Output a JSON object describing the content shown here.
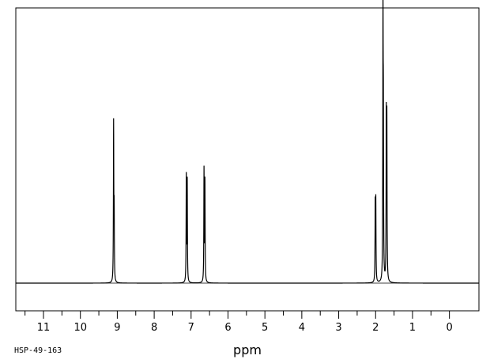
{
  "chart_data": {
    "type": "line",
    "title": "",
    "xlabel": "ppm",
    "ylabel": "",
    "x_reversed": true,
    "xlim": [
      11.75,
      -0.8
    ],
    "ylim": [
      0,
      100
    ],
    "grid": false,
    "x_major_ticks": [
      11,
      10,
      9,
      8,
      7,
      6,
      5,
      4,
      3,
      2,
      1,
      0
    ],
    "x_tick_labels": [
      "11",
      "10",
      "9",
      "8",
      "7",
      "6",
      "5",
      "4",
      "3",
      "2",
      "1",
      "0"
    ],
    "x_minor_ticks": [
      11.5,
      10.5,
      9.5,
      8.5,
      7.5,
      6.5,
      5.5,
      4.5,
      3.5,
      2.5,
      1.5,
      0.5
    ],
    "peaks": [
      {
        "ppm": 9.1,
        "intensity": 61.9
      },
      {
        "ppm": 9.085,
        "intensity": 26.3
      },
      {
        "ppm": 7.13,
        "intensity": 42.0
      },
      {
        "ppm": 7.105,
        "intensity": 40.0
      },
      {
        "ppm": 6.65,
        "intensity": 44.5
      },
      {
        "ppm": 6.625,
        "intensity": 39.9
      },
      {
        "ppm": 2.01,
        "intensity": 30.0
      },
      {
        "ppm": 1.995,
        "intensity": 31.0
      },
      {
        "ppm": 1.8,
        "intensity": 100.0
      },
      {
        "ppm": 1.79,
        "intensity": 55.9
      },
      {
        "ppm": 1.71,
        "intensity": 62.8
      },
      {
        "ppm": 1.695,
        "intensity": 61.2
      }
    ],
    "spectrum_id": "HSP-49-163"
  }
}
